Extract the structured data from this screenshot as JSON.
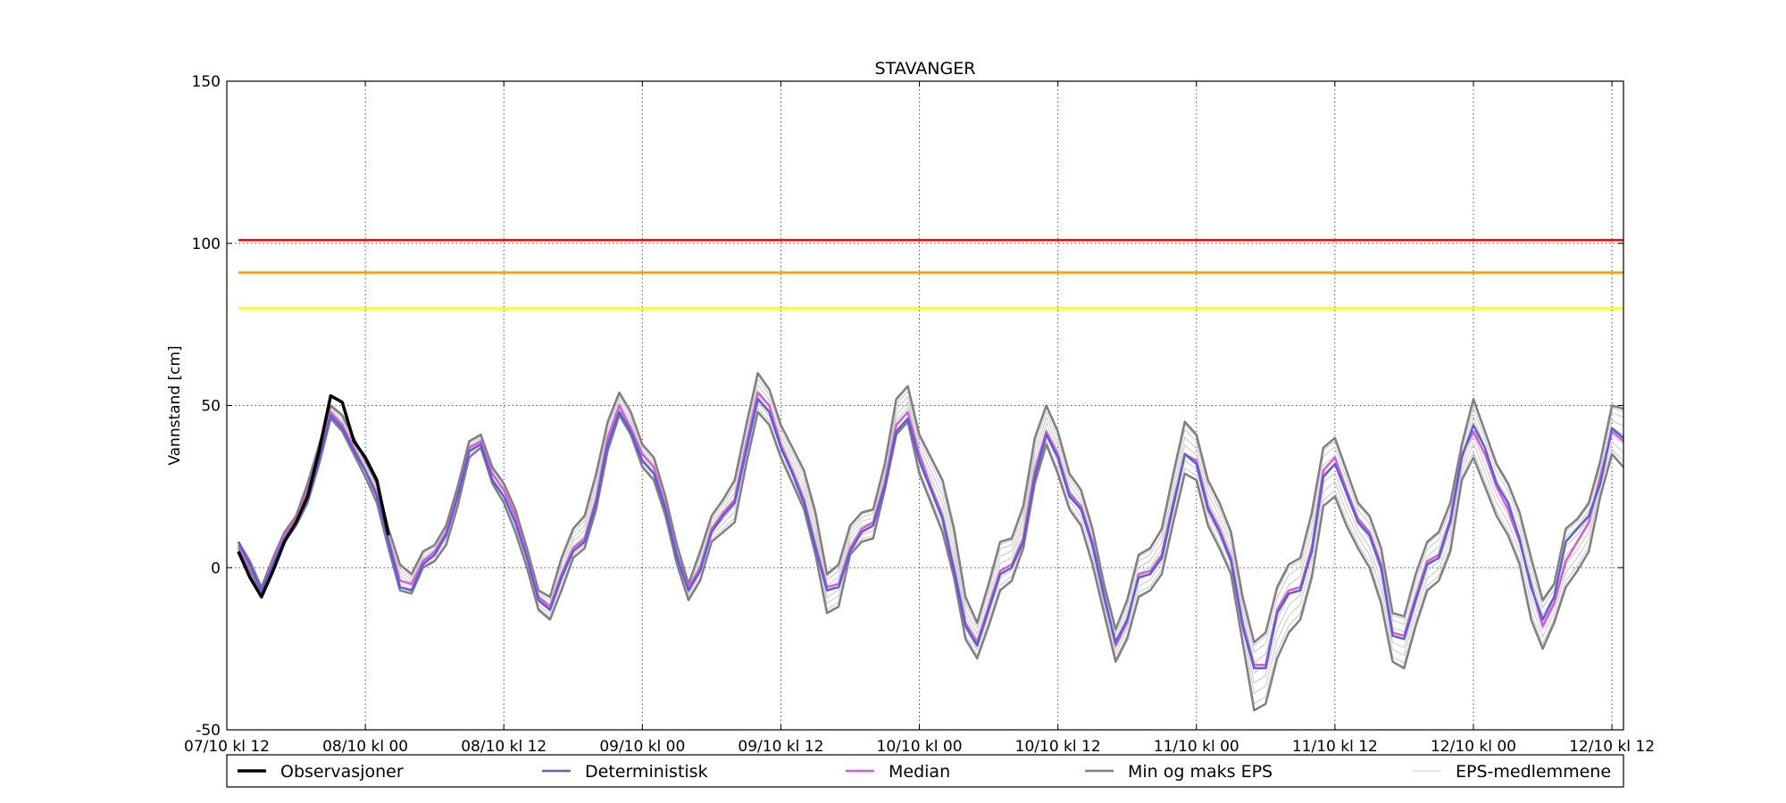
{
  "chart_data": {
    "type": "line",
    "title": "STAVANGER",
    "ylabel": "Vannstand [cm]",
    "xlabel": "",
    "ylim": [
      -50,
      150
    ],
    "yticks": [
      -50,
      0,
      50,
      100,
      150
    ],
    "x_unit": "hours since 07/10 kl 12",
    "xlim": [
      0,
      121
    ],
    "xticks": [
      0,
      12,
      24,
      36,
      48,
      60,
      72,
      84,
      96,
      108,
      120
    ],
    "xtick_labels": [
      "07/10 kl 12",
      "08/10 kl 00",
      "08/10 kl 12",
      "09/10 kl 00",
      "09/10 kl 12",
      "10/10 kl 00",
      "10/10 kl 12",
      "11/10 kl 00",
      "11/10 kl 12",
      "12/10 kl 00",
      "12/10 kl 12"
    ],
    "grid": true,
    "legend_position": "bottom",
    "thresholds": [
      {
        "value": 101,
        "color": "#ff0000"
      },
      {
        "value": 91,
        "color": "#ff9900"
      },
      {
        "value": 80,
        "color": "#ffff00"
      }
    ],
    "series": [
      {
        "name": "Observasjoner",
        "color": "#000000",
        "x": [
          1,
          2,
          3,
          4,
          5,
          6,
          7,
          8,
          9,
          10,
          11,
          12,
          13,
          14
        ],
        "values": [
          5,
          -3,
          -9,
          -1,
          8,
          14,
          22,
          36,
          53,
          51,
          39,
          34,
          27,
          10
        ]
      },
      {
        "name": "Deterministisk",
        "color": "#5b5fd6",
        "x": [
          1,
          2,
          3,
          4,
          5,
          6,
          7,
          8,
          9,
          10,
          11,
          12,
          13,
          14,
          15,
          16,
          17,
          18,
          19,
          20,
          21,
          22,
          23,
          24,
          25,
          26,
          27,
          28,
          29,
          30,
          31,
          32,
          33,
          34,
          35,
          36,
          37,
          38,
          39,
          40,
          41,
          42,
          43,
          44,
          45,
          46,
          47,
          48,
          49,
          50,
          51,
          52,
          53,
          54,
          55,
          56,
          57,
          58,
          59,
          60,
          61,
          62,
          63,
          64,
          65,
          66,
          67,
          68,
          69,
          70,
          71,
          72,
          73,
          74,
          75,
          76,
          77,
          78,
          79,
          80,
          81,
          82,
          83,
          84,
          85,
          86,
          87,
          88,
          89,
          90,
          91,
          92,
          93,
          94,
          95,
          96,
          97,
          98,
          99,
          100,
          101,
          102,
          103,
          104,
          105,
          106,
          107,
          108,
          109,
          110,
          111,
          112,
          113,
          114,
          115,
          116,
          117,
          118,
          119,
          120,
          121
        ],
        "values": [
          8,
          1,
          -7,
          1,
          9,
          14,
          21,
          33,
          47,
          43,
          36,
          30,
          22,
          8,
          -6,
          -7,
          1,
          4,
          10,
          22,
          36,
          38,
          27,
          22,
          14,
          3,
          -10,
          -13,
          -3,
          5,
          8,
          20,
          38,
          48,
          42,
          33,
          29,
          18,
          3,
          -7,
          -1,
          11,
          16,
          20,
          36,
          52,
          48,
          37,
          29,
          20,
          6,
          -7,
          -6,
          5,
          11,
          13,
          25,
          42,
          46,
          33,
          24,
          15,
          -1,
          -18,
          -24,
          -13,
          -2,
          0,
          8,
          28,
          41,
          34,
          22,
          18,
          7,
          -9,
          -23,
          -16,
          -3,
          -2,
          3,
          19,
          35,
          32,
          18,
          11,
          2,
          -18,
          -31,
          -31,
          -14,
          -8,
          -7,
          5,
          28,
          32,
          23,
          14,
          10,
          0,
          -21,
          -22,
          -10,
          1,
          3,
          14,
          34,
          44,
          37,
          26,
          20,
          9,
          -6,
          -16,
          -9,
          8,
          12,
          16,
          26,
          43,
          40
        ]
      },
      {
        "name": "Median",
        "color": "#d65cd6",
        "x": [
          1,
          2,
          3,
          4,
          5,
          6,
          7,
          8,
          9,
          10,
          11,
          12,
          13,
          14,
          15,
          16,
          17,
          18,
          19,
          20,
          21,
          22,
          23,
          24,
          25,
          26,
          27,
          28,
          29,
          30,
          31,
          32,
          33,
          34,
          35,
          36,
          37,
          38,
          39,
          40,
          41,
          42,
          43,
          44,
          45,
          46,
          47,
          48,
          49,
          50,
          51,
          52,
          53,
          54,
          55,
          56,
          57,
          58,
          59,
          60,
          61,
          62,
          63,
          64,
          65,
          66,
          67,
          68,
          69,
          70,
          71,
          72,
          73,
          74,
          75,
          76,
          77,
          78,
          79,
          80,
          81,
          82,
          83,
          84,
          85,
          86,
          87,
          88,
          89,
          90,
          91,
          92,
          93,
          94,
          95,
          96,
          97,
          98,
          99,
          100,
          101,
          102,
          103,
          104,
          105,
          106,
          107,
          108,
          109,
          110,
          111,
          112,
          113,
          114,
          115,
          116,
          117,
          118,
          119,
          120,
          121
        ],
        "values": [
          7,
          0,
          -7,
          2,
          10,
          15,
          24,
          35,
          48,
          44,
          37,
          30,
          23,
          9,
          -4,
          -5,
          2,
          5,
          11,
          23,
          37,
          39,
          29,
          24,
          16,
          4,
          -9,
          -12,
          -2,
          6,
          9,
          21,
          40,
          50,
          43,
          35,
          31,
          19,
          4,
          -6,
          0,
          12,
          17,
          21,
          38,
          54,
          50,
          38,
          30,
          21,
          7,
          -6,
          -5,
          6,
          12,
          14,
          26,
          44,
          48,
          35,
          25,
          16,
          0,
          -17,
          -23,
          -12,
          -1,
          1,
          9,
          30,
          42,
          35,
          23,
          19,
          8,
          -8,
          -24,
          -17,
          -2,
          -1,
          4,
          20,
          35,
          33,
          19,
          12,
          3,
          -17,
          -30,
          -30,
          -13,
          -7,
          -6,
          6,
          30,
          34,
          24,
          15,
          11,
          1,
          -20,
          -21,
          -9,
          2,
          4,
          15,
          35,
          42,
          35,
          25,
          18,
          8,
          -5,
          -18,
          -11,
          2,
          8,
          14,
          28,
          42,
          39
        ]
      },
      {
        "name": "Min og maks EPS",
        "color": "#808080",
        "x": [
          1,
          2,
          3,
          4,
          5,
          6,
          7,
          8,
          9,
          10,
          11,
          12,
          13,
          14,
          15,
          16,
          17,
          18,
          19,
          20,
          21,
          22,
          23,
          24,
          25,
          26,
          27,
          28,
          29,
          30,
          31,
          32,
          33,
          34,
          35,
          36,
          37,
          38,
          39,
          40,
          41,
          42,
          43,
          44,
          45,
          46,
          47,
          48,
          49,
          50,
          51,
          52,
          53,
          54,
          55,
          56,
          57,
          58,
          59,
          60,
          61,
          62,
          63,
          64,
          65,
          66,
          67,
          68,
          69,
          70,
          71,
          72,
          73,
          74,
          75,
          76,
          77,
          78,
          79,
          80,
          81,
          82,
          83,
          84,
          85,
          86,
          87,
          88,
          89,
          90,
          91,
          92,
          93,
          94,
          95,
          96,
          97,
          98,
          99,
          100,
          101,
          102,
          103,
          104,
          105,
          106,
          107,
          108,
          109,
          110,
          111,
          112,
          113,
          114,
          115,
          116,
          117,
          118,
          119,
          120,
          121
        ],
        "values_max": [
          8,
          2,
          -6,
          3,
          11,
          16,
          26,
          38,
          50,
          47,
          40,
          33,
          26,
          12,
          1,
          -2,
          5,
          7,
          13,
          25,
          39,
          41,
          31,
          26,
          18,
          6,
          -7,
          -9,
          3,
          12,
          16,
          29,
          45,
          54,
          48,
          38,
          34,
          22,
          7,
          -5,
          5,
          16,
          21,
          27,
          44,
          60,
          55,
          44,
          37,
          30,
          17,
          -2,
          1,
          13,
          17,
          18,
          32,
          52,
          56,
          41,
          34,
          27,
          12,
          -9,
          -17,
          -5,
          8,
          9,
          19,
          40,
          50,
          42,
          29,
          24,
          12,
          -5,
          -19,
          -10,
          4,
          6,
          12,
          29,
          45,
          41,
          27,
          20,
          11,
          -9,
          -23,
          -20,
          -6,
          1,
          3,
          17,
          37,
          40,
          30,
          20,
          16,
          6,
          -14,
          -15,
          -2,
          8,
          11,
          20,
          38,
          52,
          42,
          32,
          26,
          17,
          3,
          -10,
          -5,
          12,
          15,
          20,
          33,
          50,
          49
        ],
        "values_min": [
          6,
          -1,
          -8,
          0,
          8,
          13,
          20,
          32,
          46,
          42,
          35,
          28,
          20,
          6,
          -7,
          -8,
          0,
          2,
          7,
          19,
          34,
          37,
          26,
          20,
          11,
          0,
          -13,
          -16,
          -7,
          3,
          6,
          18,
          36,
          47,
          41,
          31,
          27,
          16,
          1,
          -10,
          -4,
          8,
          11,
          14,
          32,
          48,
          44,
          34,
          26,
          18,
          4,
          -14,
          -12,
          4,
          8,
          9,
          24,
          41,
          45,
          29,
          20,
          11,
          -3,
          -22,
          -28,
          -18,
          -7,
          -4,
          6,
          26,
          38,
          29,
          18,
          13,
          1,
          -14,
          -29,
          -22,
          -9,
          -7,
          -2,
          14,
          29,
          27,
          13,
          6,
          -2,
          -23,
          -44,
          -42,
          -28,
          -20,
          -16,
          -3,
          19,
          22,
          13,
          6,
          0,
          -11,
          -29,
          -31,
          -18,
          -7,
          -4,
          5,
          27,
          34,
          25,
          16,
          10,
          1,
          -16,
          -25,
          -17,
          -6,
          -1,
          5,
          22,
          35,
          31
        ]
      },
      {
        "name": "EPS-medlemmene",
        "color": "#c8c8c8"
      }
    ]
  }
}
